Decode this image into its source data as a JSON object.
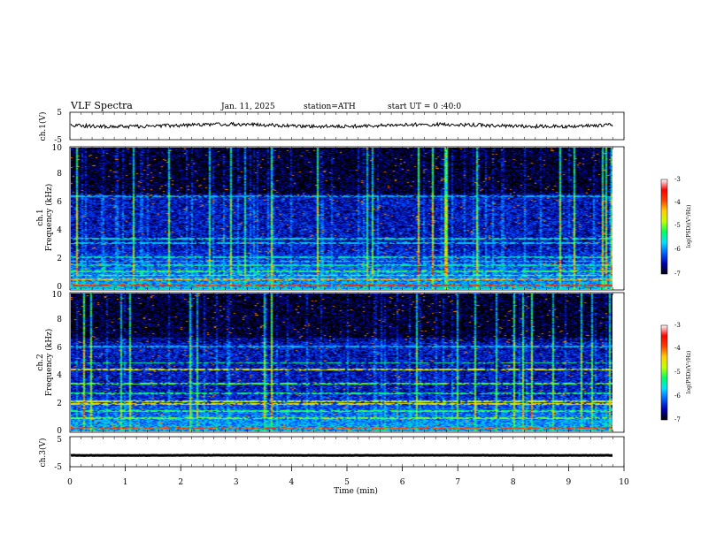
{
  "header": {
    "title": "VLF Spectra",
    "date": "Jan. 11, 2025",
    "station": "station=ATH",
    "start_ut": "start UT =  0 :40:0"
  },
  "chart_data": [
    {
      "type": "line",
      "panel": "ch1-waveform",
      "ylabel": "ch.1(V)",
      "ylim": [
        -5,
        5
      ],
      "yticks": [
        "5",
        "-5"
      ],
      "xlim": [
        0,
        10
      ],
      "series_level": 0.2
    },
    {
      "type": "heatmap",
      "panel": "ch1-spectrogram",
      "ylabel": "ch.1 Frequency (kHz)",
      "ylabel_line1": "ch.1",
      "ylabel_line2": "Frequency (kHz)",
      "ylim": [
        0,
        10
      ],
      "yticks": [
        "0",
        "2",
        "4",
        "6",
        "8",
        "10"
      ],
      "xlim": [
        0,
        9.8
      ],
      "colorbar": {
        "label": "log(PSD)(V²/Hz)",
        "range": [
          -7,
          -3
        ],
        "ticks": [
          "-3",
          "-4",
          "-5",
          "-6",
          "-7"
        ]
      },
      "bands": [
        {
          "f": 0.3,
          "level": -3.2
        },
        {
          "f": 0.7,
          "level": -3.6
        },
        {
          "f": 1.0,
          "level": -4.2
        },
        {
          "f": 1.3,
          "level": -4.5
        },
        {
          "f": 1.7,
          "level": -4.8
        },
        {
          "f": 2.0,
          "level": -4.6
        },
        {
          "f": 2.3,
          "level": -4.9
        },
        {
          "f": 3.3,
          "level": -5.2
        },
        {
          "f": 3.6,
          "level": -5.0
        },
        {
          "f": 6.6,
          "level": -5.3
        }
      ]
    },
    {
      "type": "heatmap",
      "panel": "ch2-spectrogram",
      "ylabel": "ch.2 Frequency (kHz)",
      "ylabel_line1": "ch.2",
      "ylabel_line2": "Frequency (kHz)",
      "ylim": [
        0,
        10
      ],
      "yticks": [
        "0",
        "2",
        "4",
        "6",
        "8",
        "10"
      ],
      "xlim": [
        0,
        9.8
      ],
      "colorbar": {
        "label": "log(PSD)(V²/Hz)",
        "range": [
          -7,
          -3
        ],
        "ticks": [
          "-3",
          "-4",
          "-5",
          "-6",
          "-7"
        ]
      },
      "bands": [
        {
          "f": 0.3,
          "level": -3.3
        },
        {
          "f": 1.0,
          "level": -4.3
        },
        {
          "f": 1.5,
          "level": -4.5
        },
        {
          "f": 2.0,
          "level": -3.8
        },
        {
          "f": 2.2,
          "level": -4.0
        },
        {
          "f": 2.8,
          "level": -4.6
        },
        {
          "f": 3.5,
          "level": -4.4
        },
        {
          "f": 4.5,
          "level": -3.9
        },
        {
          "f": 5.0,
          "level": -4.7
        },
        {
          "f": 6.2,
          "level": -5.3
        }
      ]
    },
    {
      "type": "line",
      "panel": "ch3-waveform",
      "ylabel": "ch.3(V)",
      "ylim": [
        -5,
        5
      ],
      "yticks": [
        "5",
        "-5"
      ],
      "xlim": [
        0,
        10
      ],
      "series_level": -1.2
    }
  ],
  "x_axis": {
    "label": "Time (min)",
    "ticks": [
      "0",
      "1",
      "2",
      "3",
      "4",
      "5",
      "6",
      "7",
      "8",
      "9",
      "10"
    ],
    "range": [
      0,
      10
    ]
  },
  "colors": {
    "colormap": [
      "#000000",
      "#0000a0",
      "#0040ff",
      "#00c0ff",
      "#00ff80",
      "#80ff00",
      "#ffff00",
      "#ff8000",
      "#ff0000",
      "#ffffff"
    ]
  }
}
